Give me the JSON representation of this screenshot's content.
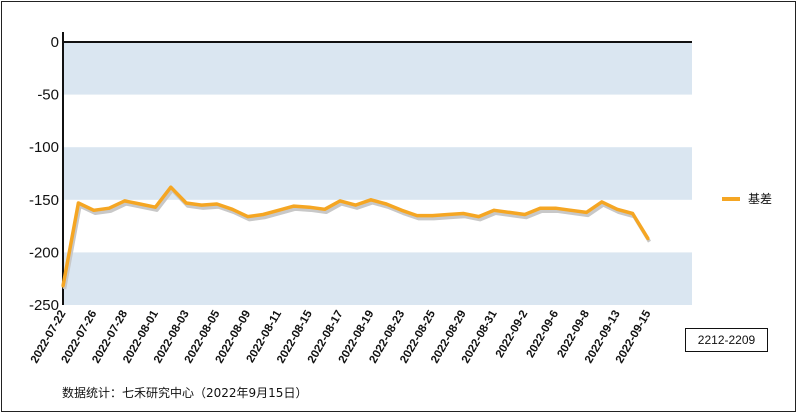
{
  "chart_data": {
    "type": "line",
    "ylim": [
      -250,
      0
    ],
    "yticks": [
      0,
      -50,
      -100,
      -150,
      -200,
      -250
    ],
    "grid": "alternating horizontal bands",
    "legend_position": "right",
    "colors": {
      "line": "#f5a623",
      "line_shadow": "#c8c8c8",
      "band": "#dae6f1",
      "axis": "#111111"
    },
    "x_tick_labels": [
      "2022-07-22",
      "2022-07-26",
      "2022-07-28",
      "2022-08-01",
      "2022-08-03",
      "2022-08-05",
      "2022-08-09",
      "2022-08-11",
      "2022-08-15",
      "2022-08-17",
      "2022-08-19",
      "2022-08-23",
      "2022-08-25",
      "2022-08-29",
      "2022-08-31",
      "2022-09-2",
      "2022-09-6",
      "2022-09-8",
      "2022-09-13",
      "2022-09-15"
    ],
    "series": [
      {
        "name": "基差",
        "values": [
          -232,
          -153,
          -160,
          -158,
          -151,
          -154,
          -157,
          -138,
          -153,
          -155,
          -154,
          -159,
          -166,
          -164,
          -160,
          -156,
          -157,
          -159,
          -151,
          -155,
          -150,
          -154,
          -160,
          -165,
          -165,
          -164,
          -163,
          -166,
          -160,
          -162,
          -164,
          -158,
          -158,
          -160,
          -162,
          -152,
          -159,
          -163,
          -187
        ]
      }
    ]
  },
  "contract_label": "2212-2209",
  "source_note": "数据统计：七禾研究中心（2022年9月15日）"
}
